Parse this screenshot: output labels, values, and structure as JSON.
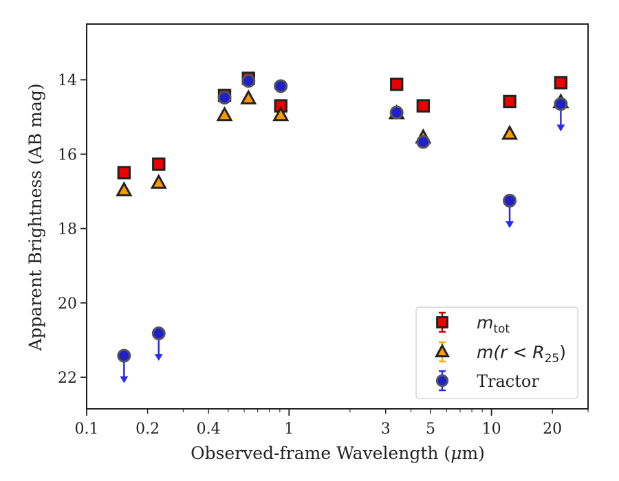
{
  "chart_data": {
    "type": "scatter",
    "xscale": "log",
    "xlim": [
      0.1,
      30
    ],
    "ylim": [
      22.85,
      12.5
    ],
    "y_inverted": true,
    "xlabel_pre": "Observed-frame Wavelength (",
    "xlabel_mu": "μ",
    "xlabel_post": "m)",
    "ylabel": "Apparent Brightness (AB mag)",
    "xticks": [
      {
        "value": 0.1,
        "label": "0.1"
      },
      {
        "value": 0.2,
        "label": "0.2"
      },
      {
        "value": 0.4,
        "label": "0.4"
      },
      {
        "value": 1,
        "label": "1"
      },
      {
        "value": 3,
        "label": "3"
      },
      {
        "value": 5,
        "label": "5"
      },
      {
        "value": 10,
        "label": "10"
      },
      {
        "value": 20,
        "label": "20"
      }
    ],
    "yticks": [
      {
        "value": 14,
        "label": "14"
      },
      {
        "value": 16,
        "label": "16"
      },
      {
        "value": 18,
        "label": "18"
      },
      {
        "value": 20,
        "label": "20"
      },
      {
        "value": 22,
        "label": "22"
      }
    ],
    "legend_position": "lower right",
    "series": [
      {
        "key": "mtot",
        "legend_main": "m",
        "legend_sub": "tot",
        "marker": "square",
        "face_color": "#ee0000",
        "edge_color": "#222222",
        "errorbar_color": "#cc0000",
        "points": [
          {
            "x": 0.153,
            "y": 16.5
          },
          {
            "x": 0.227,
            "y": 16.27
          },
          {
            "x": 0.48,
            "y": 14.42
          },
          {
            "x": 0.63,
            "y": 13.96
          },
          {
            "x": 0.91,
            "y": 14.7
          },
          {
            "x": 3.4,
            "y": 14.12
          },
          {
            "x": 4.6,
            "y": 14.7
          },
          {
            "x": 12.3,
            "y": 14.58
          },
          {
            "x": 22.0,
            "y": 14.08
          }
        ]
      },
      {
        "key": "m_r25",
        "legend_main": "m(r < R",
        "legend_sub": "25",
        "legend_close": ")",
        "marker": "triangle",
        "face_color": "#ff9900",
        "edge_color": "#222222",
        "errorbar_color": "#ffaa00",
        "points": [
          {
            "x": 0.153,
            "y": 16.97
          },
          {
            "x": 0.227,
            "y": 16.77
          },
          {
            "x": 0.48,
            "y": 14.95
          },
          {
            "x": 0.63,
            "y": 14.5
          },
          {
            "x": 0.91,
            "y": 14.95
          },
          {
            "x": 3.4,
            "y": 14.9
          },
          {
            "x": 4.6,
            "y": 15.55
          },
          {
            "x": 12.3,
            "y": 15.45
          },
          {
            "x": 22.0,
            "y": 14.6
          }
        ]
      },
      {
        "key": "tractor",
        "legend_main": "Tractor",
        "marker": "circle",
        "face_color": "#1f1fcc",
        "edge_color": "#555555",
        "errorbar_color": "#2b2bf0",
        "points": [
          {
            "x": 0.153,
            "y": 21.42,
            "upper_limit": true
          },
          {
            "x": 0.227,
            "y": 20.82,
            "upper_limit": true
          },
          {
            "x": 0.48,
            "y": 14.48
          },
          {
            "x": 0.63,
            "y": 14.03
          },
          {
            "x": 0.91,
            "y": 14.17
          },
          {
            "x": 3.4,
            "y": 14.88
          },
          {
            "x": 4.6,
            "y": 15.67
          },
          {
            "x": 12.3,
            "y": 17.25,
            "upper_limit": true
          },
          {
            "x": 22.0,
            "y": 14.65,
            "upper_limit": true
          }
        ]
      }
    ]
  }
}
